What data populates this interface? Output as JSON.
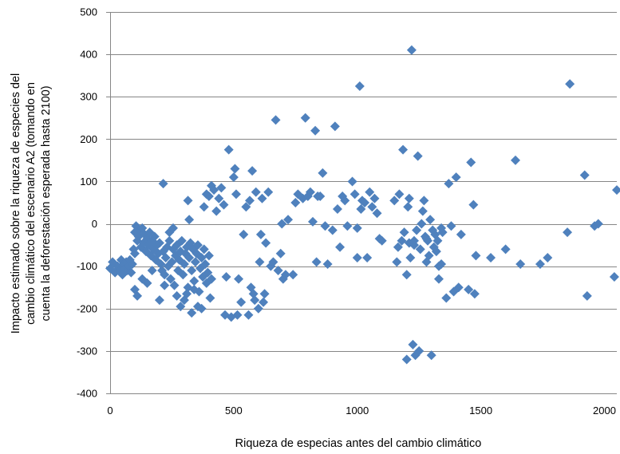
{
  "chart_data": {
    "type": "scatter",
    "title": "",
    "xlabel": "Riqueza de especias antes del cambio climático",
    "ylabel_lines": [
      "Impacto estimado sobre la riqueza de especies del",
      "cambio climático del escenario A2 (tomando en",
      "cuenta la deforestación esperada hasta 2100)"
    ],
    "xlim": [
      0,
      2050
    ],
    "ylim": [
      -400,
      500
    ],
    "xticks": [
      0,
      500,
      1000,
      1500,
      2000
    ],
    "yticks": [
      -400,
      -300,
      -200,
      -100,
      0,
      100,
      200,
      300,
      400,
      500
    ],
    "xtick_labels": [
      "0",
      "500",
      "1000",
      "1500",
      "2000"
    ],
    "ytick_labels": [
      "-400",
      "-300",
      "-200",
      "-100",
      "0",
      "100",
      "200",
      "300",
      "400",
      "500"
    ],
    "grid": "horizontal",
    "marker": "diamond",
    "marker_color": "#4F81BD",
    "points": [
      [
        0,
        -105
      ],
      [
        10,
        -90
      ],
      [
        20,
        -115
      ],
      [
        30,
        -100
      ],
      [
        40,
        -110
      ],
      [
        45,
        -85
      ],
      [
        50,
        -120
      ],
      [
        55,
        -95
      ],
      [
        60,
        -105
      ],
      [
        65,
        -90
      ],
      [
        70,
        -110
      ],
      [
        75,
        -100
      ],
      [
        80,
        -85
      ],
      [
        85,
        -115
      ],
      [
        90,
        -95
      ],
      [
        95,
        -60
      ],
      [
        100,
        -70
      ],
      [
        100,
        -20
      ],
      [
        105,
        -5
      ],
      [
        110,
        -40
      ],
      [
        115,
        -30
      ],
      [
        120,
        -15
      ],
      [
        125,
        -55
      ],
      [
        130,
        -10
      ],
      [
        135,
        -45
      ],
      [
        140,
        -25
      ],
      [
        145,
        -65
      ],
      [
        150,
        -35
      ],
      [
        155,
        -50
      ],
      [
        160,
        -20
      ],
      [
        165,
        -75
      ],
      [
        170,
        -40
      ],
      [
        175,
        -60
      ],
      [
        180,
        -30
      ],
      [
        185,
        -85
      ],
      [
        190,
        -50
      ],
      [
        195,
        -70
      ],
      [
        200,
        -45
      ],
      [
        205,
        -95
      ],
      [
        210,
        -110
      ],
      [
        215,
        -65
      ],
      [
        220,
        -120
      ],
      [
        225,
        -80
      ],
      [
        230,
        -55
      ],
      [
        235,
        -100
      ],
      [
        240,
        -40
      ],
      [
        245,
        -130
      ],
      [
        250,
        -90
      ],
      [
        255,
        -60
      ],
      [
        260,
        -145
      ],
      [
        265,
        -75
      ],
      [
        270,
        -50
      ],
      [
        275,
        -110
      ],
      [
        280,
        -85
      ],
      [
        285,
        -65
      ],
      [
        290,
        -40
      ],
      [
        295,
        -120
      ],
      [
        300,
        -95
      ],
      [
        305,
        -70
      ],
      [
        310,
        -55
      ],
      [
        315,
        -150
      ],
      [
        320,
        -80
      ],
      [
        325,
        -45
      ],
      [
        330,
        -110
      ],
      [
        335,
        -60
      ],
      [
        340,
        -135
      ],
      [
        345,
        -90
      ],
      [
        350,
        -70
      ],
      [
        355,
        -50
      ],
      [
        360,
        -160
      ],
      [
        365,
        -105
      ],
      [
        370,
        -80
      ],
      [
        375,
        -125
      ],
      [
        380,
        -60
      ],
      [
        385,
        -95
      ],
      [
        390,
        -140
      ],
      [
        395,
        -115
      ],
      [
        400,
        -75
      ],
      [
        405,
        -175
      ],
      [
        410,
        -130
      ],
      [
        100,
        -155
      ],
      [
        110,
        -170
      ],
      [
        130,
        -130
      ],
      [
        150,
        -140
      ],
      [
        170,
        -110
      ],
      [
        200,
        -180
      ],
      [
        215,
        95
      ],
      [
        220,
        -145
      ],
      [
        240,
        -20
      ],
      [
        255,
        -10
      ],
      [
        270,
        -170
      ],
      [
        285,
        -195
      ],
      [
        300,
        -180
      ],
      [
        310,
        -165
      ],
      [
        315,
        55
      ],
      [
        320,
        10
      ],
      [
        330,
        -210
      ],
      [
        340,
        -155
      ],
      [
        355,
        -195
      ],
      [
        370,
        -200
      ],
      [
        380,
        40
      ],
      [
        390,
        70
      ],
      [
        400,
        65
      ],
      [
        410,
        90
      ],
      [
        420,
        80
      ],
      [
        430,
        30
      ],
      [
        440,
        60
      ],
      [
        450,
        85
      ],
      [
        460,
        45
      ],
      [
        465,
        -215
      ],
      [
        470,
        -125
      ],
      [
        480,
        175
      ],
      [
        490,
        -220
      ],
      [
        500,
        110
      ],
      [
        505,
        130
      ],
      [
        510,
        70
      ],
      [
        515,
        -215
      ],
      [
        520,
        -130
      ],
      [
        530,
        -185
      ],
      [
        540,
        -25
      ],
      [
        550,
        40
      ],
      [
        560,
        -215
      ],
      [
        565,
        55
      ],
      [
        570,
        -150
      ],
      [
        575,
        125
      ],
      [
        580,
        -165
      ],
      [
        585,
        -180
      ],
      [
        590,
        75
      ],
      [
        600,
        -200
      ],
      [
        605,
        -90
      ],
      [
        610,
        -25
      ],
      [
        615,
        60
      ],
      [
        620,
        -185
      ],
      [
        625,
        -165
      ],
      [
        630,
        -45
      ],
      [
        640,
        75
      ],
      [
        650,
        -100
      ],
      [
        660,
        -90
      ],
      [
        670,
        245
      ],
      [
        680,
        -110
      ],
      [
        690,
        -70
      ],
      [
        695,
        0
      ],
      [
        700,
        -130
      ],
      [
        710,
        -120
      ],
      [
        720,
        10
      ],
      [
        740,
        -120
      ],
      [
        750,
        50
      ],
      [
        760,
        70
      ],
      [
        780,
        60
      ],
      [
        790,
        250
      ],
      [
        800,
        65
      ],
      [
        810,
        75
      ],
      [
        820,
        5
      ],
      [
        830,
        220
      ],
      [
        835,
        -90
      ],
      [
        840,
        65
      ],
      [
        850,
        65
      ],
      [
        860,
        120
      ],
      [
        870,
        -5
      ],
      [
        880,
        -95
      ],
      [
        900,
        -15
      ],
      [
        910,
        230
      ],
      [
        920,
        35
      ],
      [
        930,
        -55
      ],
      [
        940,
        65
      ],
      [
        950,
        55
      ],
      [
        960,
        -5
      ],
      [
        980,
        100
      ],
      [
        990,
        70
      ],
      [
        1000,
        -10
      ],
      [
        1010,
        325
      ],
      [
        1015,
        35
      ],
      [
        1020,
        55
      ],
      [
        1030,
        50
      ],
      [
        1040,
        -80
      ],
      [
        1050,
        75
      ],
      [
        1060,
        40
      ],
      [
        1070,
        60
      ],
      [
        1080,
        25
      ],
      [
        1090,
        -35
      ],
      [
        1150,
        55
      ],
      [
        1160,
        -90
      ],
      [
        1165,
        -55
      ],
      [
        1170,
        70
      ],
      [
        1180,
        -40
      ],
      [
        1185,
        175
      ],
      [
        1190,
        -20
      ],
      [
        1200,
        -120
      ],
      [
        1205,
        40
      ],
      [
        1210,
        -45
      ],
      [
        1215,
        -80
      ],
      [
        1220,
        410
      ],
      [
        1225,
        -285
      ],
      [
        1230,
        -50
      ],
      [
        1235,
        -310
      ],
      [
        1240,
        -15
      ],
      [
        1245,
        160
      ],
      [
        1250,
        -300
      ],
      [
        1255,
        -60
      ],
      [
        1260,
        0
      ],
      [
        1265,
        30
      ],
      [
        1270,
        55
      ],
      [
        1275,
        -30
      ],
      [
        1280,
        -90
      ],
      [
        1285,
        -40
      ],
      [
        1290,
        -75
      ],
      [
        1300,
        -310
      ],
      [
        1305,
        -15
      ],
      [
        1310,
        -55
      ],
      [
        1315,
        -25
      ],
      [
        1320,
        -65
      ],
      [
        1325,
        -40
      ],
      [
        1330,
        -130
      ],
      [
        1340,
        -95
      ],
      [
        1345,
        -20
      ],
      [
        1360,
        -175
      ],
      [
        1370,
        95
      ],
      [
        1380,
        -5
      ],
      [
        1390,
        -160
      ],
      [
        1400,
        110
      ],
      [
        1410,
        -150
      ],
      [
        1420,
        -25
      ],
      [
        1450,
        -155
      ],
      [
        1460,
        145
      ],
      [
        1470,
        45
      ],
      [
        1475,
        -165
      ],
      [
        1480,
        -75
      ],
      [
        1540,
        -80
      ],
      [
        1600,
        -60
      ],
      [
        1640,
        150
      ],
      [
        1660,
        -95
      ],
      [
        1740,
        -95
      ],
      [
        1770,
        -80
      ],
      [
        1850,
        -20
      ],
      [
        1860,
        330
      ],
      [
        1920,
        115
      ],
      [
        1930,
        -170
      ],
      [
        1960,
        -5
      ],
      [
        1975,
        0
      ],
      [
        2040,
        -125
      ],
      [
        2050,
        80
      ],
      [
        1200,
        -320
      ],
      [
        1000,
        -80
      ],
      [
        1100,
        -40
      ],
      [
        1210,
        60
      ],
      [
        1330,
        -100
      ],
      [
        1230,
        -40
      ],
      [
        1280,
        -35
      ],
      [
        1295,
        10
      ],
      [
        1340,
        -10
      ]
    ]
  }
}
